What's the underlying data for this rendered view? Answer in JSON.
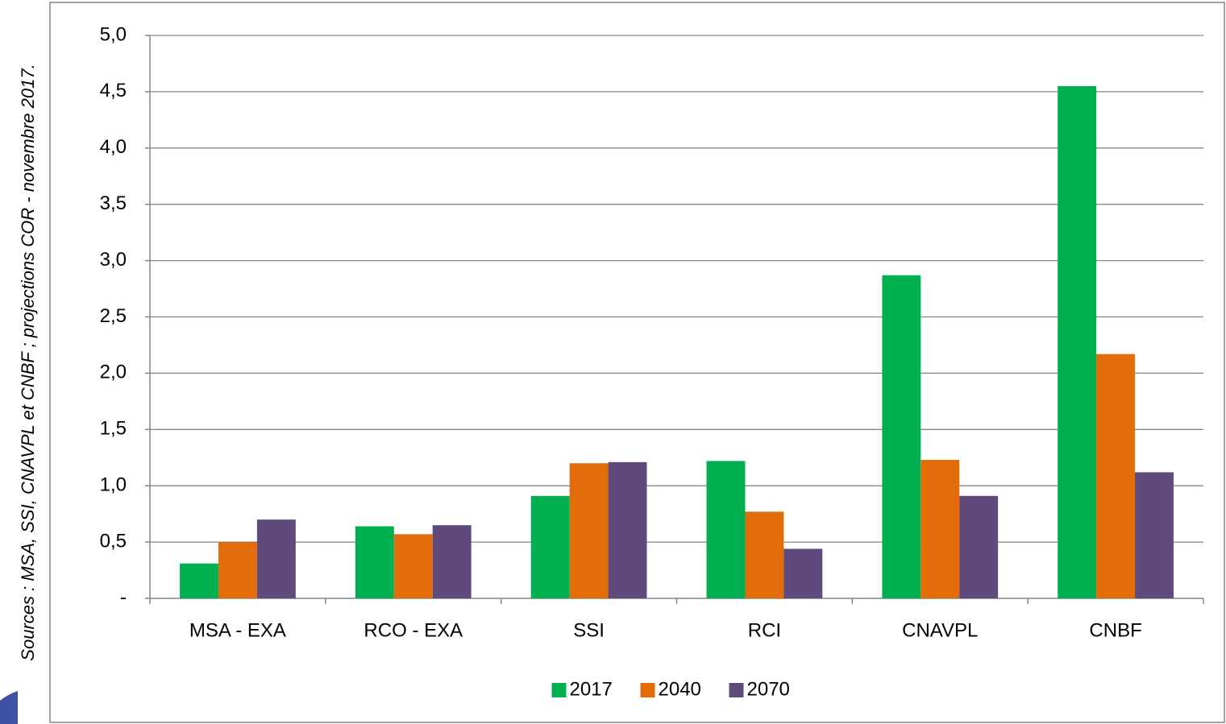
{
  "chart_data": {
    "type": "bar",
    "source": "Sources : MSA, SSI, CNAVPL et CNBF ; projections COR - novembre 2017.",
    "categories": [
      "MSA - EXA",
      "RCO - EXA",
      "SSI",
      "RCI",
      "CNAVPL",
      "CNBF"
    ],
    "series": [
      {
        "name": "2017",
        "color": "#00b050",
        "values": [
          0.31,
          0.64,
          0.91,
          1.22,
          2.87,
          4.55
        ]
      },
      {
        "name": "2040",
        "color": "#e36c0a",
        "values": [
          0.5,
          0.57,
          1.2,
          0.77,
          1.23,
          2.17
        ]
      },
      {
        "name": "2070",
        "color": "#604a7b",
        "values": [
          0.7,
          0.65,
          1.21,
          0.44,
          0.91,
          1.12
        ]
      }
    ],
    "ylim": [
      0,
      5
    ],
    "yticks": [
      {
        "value": 0,
        "label": "-"
      },
      {
        "value": 0.5,
        "label": "0,5"
      },
      {
        "value": 1,
        "label": "1,0"
      },
      {
        "value": 1.5,
        "label": "1,5"
      },
      {
        "value": 2,
        "label": "2,0"
      },
      {
        "value": 2.5,
        "label": "2,5"
      },
      {
        "value": 3,
        "label": "3,0"
      },
      {
        "value": 3.5,
        "label": "3,5"
      },
      {
        "value": 4,
        "label": "4,0"
      },
      {
        "value": 4.5,
        "label": "4,5"
      },
      {
        "value": 5,
        "label": "5,0"
      }
    ],
    "grid": true,
    "legend": "bottom"
  }
}
